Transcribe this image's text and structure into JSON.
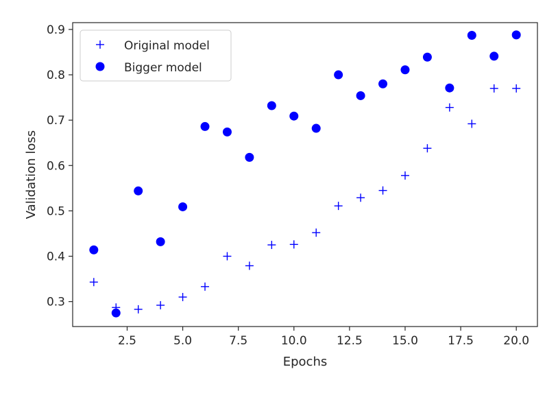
{
  "chart_data": {
    "type": "scatter",
    "xlabel": "Epochs",
    "ylabel": "Validation loss",
    "xlim": [
      0.05,
      20.95
    ],
    "ylim": [
      0.245,
      0.915
    ],
    "xticks": [
      2.5,
      5.0,
      7.5,
      10.0,
      12.5,
      15.0,
      17.5,
      20.0
    ],
    "xtick_labels": [
      "2.5",
      "5.0",
      "7.5",
      "10.0",
      "12.5",
      "15.0",
      "17.5",
      "20.0"
    ],
    "yticks": [
      0.3,
      0.4,
      0.5,
      0.6,
      0.7,
      0.8,
      0.9
    ],
    "ytick_labels": [
      "0.3",
      "0.4",
      "0.5",
      "0.6",
      "0.7",
      "0.8",
      "0.9"
    ],
    "grid": false,
    "legend_position": "top-left",
    "series": [
      {
        "name": "Original model",
        "marker": "plus",
        "color": "#0000ff",
        "x": [
          1,
          2,
          3,
          4,
          5,
          6,
          7,
          8,
          9,
          10,
          11,
          12,
          13,
          14,
          15,
          16,
          17,
          18,
          19,
          20
        ],
        "y": [
          0.343,
          0.287,
          0.283,
          0.292,
          0.31,
          0.333,
          0.4,
          0.379,
          0.425,
          0.426,
          0.452,
          0.511,
          0.529,
          0.545,
          0.578,
          0.638,
          0.728,
          0.692,
          0.77,
          0.77
        ]
      },
      {
        "name": "Bigger model",
        "marker": "circle",
        "color": "#0000ff",
        "x": [
          1,
          2,
          3,
          4,
          5,
          6,
          7,
          8,
          9,
          10,
          11,
          12,
          13,
          14,
          15,
          16,
          17,
          18,
          19,
          20
        ],
        "y": [
          0.414,
          0.275,
          0.544,
          0.432,
          0.509,
          0.686,
          0.674,
          0.618,
          0.732,
          0.709,
          0.682,
          0.8,
          0.754,
          0.78,
          0.811,
          0.839,
          0.771,
          0.887,
          0.841,
          0.888
        ]
      }
    ]
  }
}
